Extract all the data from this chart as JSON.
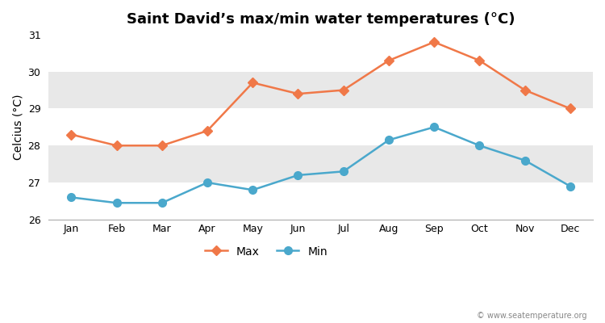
{
  "title": "Saint David’s max/min water temperatures (°C)",
  "ylabel": "Celcius (°C)",
  "months": [
    "Jan",
    "Feb",
    "Mar",
    "Apr",
    "May",
    "Jun",
    "Jul",
    "Aug",
    "Sep",
    "Oct",
    "Nov",
    "Dec"
  ],
  "max_temps": [
    28.3,
    28.0,
    28.0,
    28.4,
    29.7,
    29.4,
    29.5,
    30.3,
    30.8,
    30.3,
    29.5,
    29.0
  ],
  "min_temps": [
    26.6,
    26.45,
    26.45,
    27.0,
    26.8,
    27.2,
    27.3,
    28.15,
    28.5,
    28.0,
    27.6,
    26.9
  ],
  "max_color": "#f07848",
  "min_color": "#4aa8cc",
  "ylim": [
    26.0,
    31.0
  ],
  "yticks": [
    26,
    27,
    28,
    29,
    30,
    31
  ],
  "band_colors": [
    "#ffffff",
    "#e8e8e8"
  ],
  "bg_color": "#ffffff",
  "spine_color": "#aaaaaa",
  "watermark": "© www.seatemperature.org",
  "legend_max": "Max",
  "legend_min": "Min",
  "title_fontsize": 13,
  "label_fontsize": 10,
  "tick_fontsize": 9,
  "max_marker": "D",
  "min_marker": "o",
  "max_markersize": 6,
  "min_markersize": 7,
  "linewidth": 1.8
}
